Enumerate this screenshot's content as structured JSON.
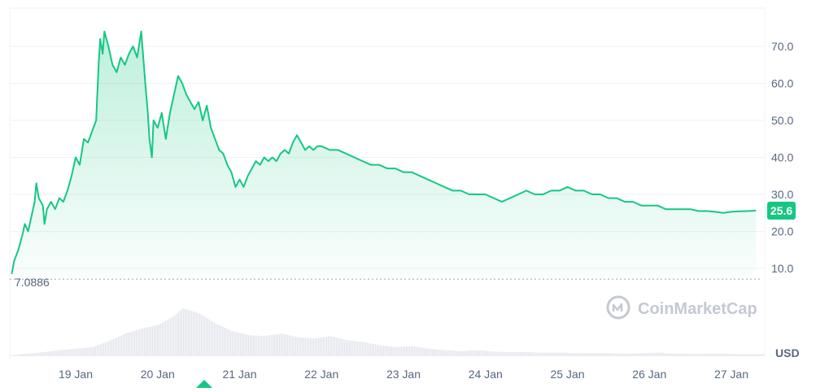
{
  "chart_data": {
    "type": "area",
    "currency": "USD",
    "y_ticks": [
      "10.0",
      "20.0",
      "30.0",
      "40.0",
      "50.0",
      "60.0",
      "70.0"
    ],
    "ylim": [
      0,
      80
    ],
    "x_ticks": [
      "19 Jan",
      "20 Jan",
      "21 Jan",
      "22 Jan",
      "23 Jan",
      "24 Jan",
      "25 Jan",
      "26 Jan",
      "27 Jan"
    ],
    "xlim_days": [
      18.2,
      27.3
    ],
    "start_value": "7.0886",
    "last_price": "25.6",
    "colors": {
      "line": "#16c784",
      "price_badge": "#16c784",
      "volume": "#e3e6ec",
      "grid": "#eff2f5"
    },
    "series": [
      {
        "values": [
          [
            18.22,
            8.5
          ],
          [
            18.25,
            12
          ],
          [
            18.3,
            15
          ],
          [
            18.35,
            19
          ],
          [
            18.38,
            22
          ],
          [
            18.42,
            20
          ],
          [
            18.45,
            23
          ],
          [
            18.5,
            28
          ],
          [
            18.52,
            33
          ],
          [
            18.55,
            29
          ],
          [
            18.6,
            27
          ],
          [
            18.62,
            22
          ],
          [
            18.65,
            26
          ],
          [
            18.7,
            28
          ],
          [
            18.75,
            26
          ],
          [
            18.8,
            29
          ],
          [
            18.85,
            28
          ],
          [
            18.9,
            31
          ],
          [
            18.95,
            35
          ],
          [
            19.0,
            40
          ],
          [
            19.05,
            38
          ],
          [
            19.1,
            45
          ],
          [
            19.15,
            44
          ],
          [
            19.2,
            47
          ],
          [
            19.25,
            50
          ],
          [
            19.28,
            65
          ],
          [
            19.3,
            72
          ],
          [
            19.33,
            68
          ],
          [
            19.35,
            74
          ],
          [
            19.4,
            70
          ],
          [
            19.45,
            65
          ],
          [
            19.5,
            63
          ],
          [
            19.55,
            67
          ],
          [
            19.6,
            65
          ],
          [
            19.65,
            68
          ],
          [
            19.7,
            70
          ],
          [
            19.75,
            67
          ],
          [
            19.8,
            74
          ],
          [
            19.85,
            60
          ],
          [
            19.88,
            52
          ],
          [
            19.9,
            45
          ],
          [
            19.93,
            40
          ],
          [
            19.95,
            50
          ],
          [
            20.0,
            48
          ],
          [
            20.05,
            52
          ],
          [
            20.1,
            45
          ],
          [
            20.15,
            52
          ],
          [
            20.2,
            57
          ],
          [
            20.25,
            62
          ],
          [
            20.3,
            60
          ],
          [
            20.35,
            57
          ],
          [
            20.4,
            55
          ],
          [
            20.45,
            53
          ],
          [
            20.5,
            55
          ],
          [
            20.55,
            50
          ],
          [
            20.6,
            54
          ],
          [
            20.65,
            48
          ],
          [
            20.7,
            45
          ],
          [
            20.75,
            42
          ],
          [
            20.8,
            41
          ],
          [
            20.85,
            38
          ],
          [
            20.9,
            36
          ],
          [
            20.95,
            32
          ],
          [
            21.0,
            34
          ],
          [
            21.05,
            32
          ],
          [
            21.1,
            35
          ],
          [
            21.15,
            37
          ],
          [
            21.2,
            39
          ],
          [
            21.25,
            38
          ],
          [
            21.3,
            40
          ],
          [
            21.35,
            39
          ],
          [
            21.4,
            40
          ],
          [
            21.45,
            39
          ],
          [
            21.5,
            41
          ],
          [
            21.55,
            42
          ],
          [
            21.6,
            41
          ],
          [
            21.65,
            44
          ],
          [
            21.7,
            46
          ],
          [
            21.75,
            44
          ],
          [
            21.8,
            42
          ],
          [
            21.85,
            43
          ],
          [
            21.9,
            42
          ],
          [
            21.95,
            43
          ],
          [
            22.0,
            43
          ],
          [
            22.1,
            42
          ],
          [
            22.2,
            42
          ],
          [
            22.3,
            41
          ],
          [
            22.4,
            40
          ],
          [
            22.5,
            39
          ],
          [
            22.6,
            38
          ],
          [
            22.7,
            38
          ],
          [
            22.8,
            37
          ],
          [
            22.9,
            37
          ],
          [
            23.0,
            36
          ],
          [
            23.1,
            36
          ],
          [
            23.2,
            35
          ],
          [
            23.3,
            34
          ],
          [
            23.4,
            33
          ],
          [
            23.5,
            32
          ],
          [
            23.6,
            31
          ],
          [
            23.7,
            31
          ],
          [
            23.8,
            30
          ],
          [
            23.9,
            30
          ],
          [
            24.0,
            30
          ],
          [
            24.1,
            29
          ],
          [
            24.2,
            28
          ],
          [
            24.3,
            29
          ],
          [
            24.4,
            30
          ],
          [
            24.5,
            31
          ],
          [
            24.6,
            30
          ],
          [
            24.7,
            30
          ],
          [
            24.8,
            31
          ],
          [
            24.9,
            31
          ],
          [
            25.0,
            32
          ],
          [
            25.1,
            31
          ],
          [
            25.2,
            31
          ],
          [
            25.3,
            30
          ],
          [
            25.4,
            30
          ],
          [
            25.5,
            29
          ],
          [
            25.6,
            29
          ],
          [
            25.7,
            28
          ],
          [
            25.8,
            28
          ],
          [
            25.9,
            27
          ],
          [
            26.0,
            27
          ],
          [
            26.1,
            27
          ],
          [
            26.2,
            26
          ],
          [
            26.3,
            26
          ],
          [
            26.4,
            26
          ],
          [
            26.5,
            26
          ],
          [
            26.6,
            25.5
          ],
          [
            26.7,
            25.5
          ],
          [
            26.8,
            25.3
          ],
          [
            26.9,
            25
          ],
          [
            27.0,
            25.3
          ],
          [
            27.1,
            25.4
          ],
          [
            27.2,
            25.5
          ],
          [
            27.3,
            25.6
          ]
        ]
      }
    ],
    "volume": [
      [
        18.2,
        0.02
      ],
      [
        18.4,
        0.05
      ],
      [
        18.6,
        0.08
      ],
      [
        18.8,
        0.12
      ],
      [
        19.0,
        0.15
      ],
      [
        19.2,
        0.18
      ],
      [
        19.4,
        0.3
      ],
      [
        19.6,
        0.45
      ],
      [
        19.8,
        0.55
      ],
      [
        20.0,
        0.62
      ],
      [
        20.2,
        0.8
      ],
      [
        20.3,
        0.95
      ],
      [
        20.4,
        0.9
      ],
      [
        20.5,
        0.85
      ],
      [
        20.7,
        0.65
      ],
      [
        20.9,
        0.5
      ],
      [
        21.1,
        0.42
      ],
      [
        21.3,
        0.4
      ],
      [
        21.5,
        0.45
      ],
      [
        21.7,
        0.38
      ],
      [
        21.9,
        0.35
      ],
      [
        22.1,
        0.4
      ],
      [
        22.3,
        0.32
      ],
      [
        22.5,
        0.28
      ],
      [
        22.7,
        0.22
      ],
      [
        22.9,
        0.18
      ],
      [
        23.1,
        0.2
      ],
      [
        23.3,
        0.15
      ],
      [
        23.5,
        0.12
      ],
      [
        23.7,
        0.1
      ],
      [
        23.9,
        0.12
      ],
      [
        24.1,
        0.09
      ],
      [
        24.3,
        0.08
      ],
      [
        24.5,
        0.08
      ],
      [
        24.7,
        0.07
      ],
      [
        24.9,
        0.07
      ],
      [
        25.1,
        0.06
      ],
      [
        25.3,
        0.06
      ],
      [
        25.5,
        0.06
      ],
      [
        25.7,
        0.05
      ],
      [
        25.9,
        0.06
      ],
      [
        26.1,
        0.07
      ],
      [
        26.3,
        0.05
      ],
      [
        26.5,
        0.05
      ],
      [
        26.7,
        0.05
      ],
      [
        26.9,
        0.05
      ],
      [
        27.1,
        0.04
      ],
      [
        27.3,
        0.04
      ]
    ]
  },
  "watermark": {
    "text": "CoinMarketCap",
    "icon": "coinmarketcap-logo"
  }
}
